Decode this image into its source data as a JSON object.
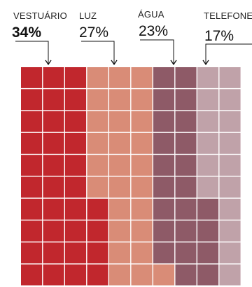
{
  "chart_data": {
    "type": "waffle",
    "title": "",
    "grid": {
      "columns": 10,
      "rows": 10,
      "total_cells": 100
    },
    "categories": [
      {
        "name": "VESTUÁRIO",
        "value": 34,
        "value_label": "34%",
        "color": "#c1272d",
        "order": 1
      },
      {
        "name": "LUZ",
        "value": 27,
        "value_label": "27%",
        "color": "#d98c77",
        "order": 2
      },
      {
        "name": "ÁGUA",
        "value": 23,
        "value_label": "23%",
        "color": "#8e5a67",
        "order": 3
      },
      {
        "name": "TELEFONE",
        "value": 17,
        "value_label": "17%",
        "color": "#c0a2a9",
        "order": 4
      }
    ]
  }
}
